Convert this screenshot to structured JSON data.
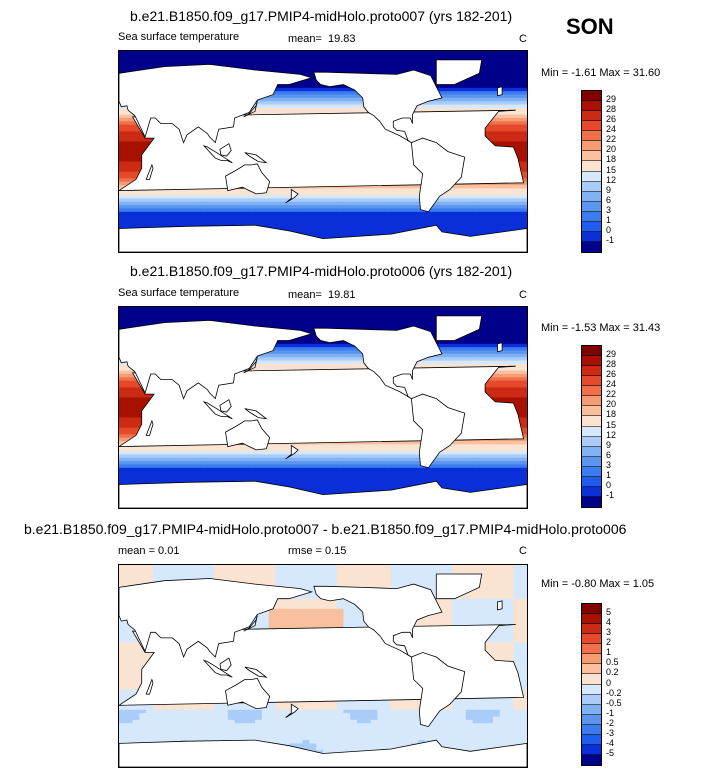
{
  "season": "SON",
  "panels": [
    {
      "title": "b.e21.B1850.f09_g17.PMIP4-midHolo.proto007 (yrs 182-201)",
      "left_label": "Sea surface temperature",
      "mean_label": "mean=",
      "mean_value": "19.83",
      "units": "C",
      "minmax": "Min = -1.61 Max = 31.60"
    },
    {
      "title": "b.e21.B1850.f09_g17.PMIP4-midHolo.proto006 (yrs 182-201)",
      "left_label": "Sea surface temperature",
      "mean_label": "mean=",
      "mean_value": "19.81",
      "units": "C",
      "minmax": "Min = -1.53 Max = 31.43"
    },
    {
      "title": "b.e21.B1850.f09_g17.PMIP4-midHolo.proto007 - b.e21.B1850.f09_g17.PMIP4-midHolo.proto006",
      "left_label": "mean =  0.01",
      "rmse_label": "rmse =  0.15",
      "units": "C",
      "minmax": "Min = -0.80 Max =  1.05"
    }
  ],
  "chart_data": [
    {
      "type": "heatmap",
      "title": "b.e21.B1850.f09_g17.PMIP4-midHolo.proto007 (yrs 182-201)",
      "variable": "Sea surface temperature",
      "units": "C",
      "mean": 19.83,
      "min": -1.61,
      "max": 31.6,
      "levels": [
        "-1",
        "0",
        "1",
        "3",
        "6",
        "9",
        "12",
        "15",
        "18",
        "20",
        "22",
        "24",
        "26",
        "28",
        "29"
      ],
      "colors": [
        "#00008b",
        "#0a2fd9",
        "#1f5cf0",
        "#3b7df0",
        "#5a96f0",
        "#7fb1f5",
        "#a9cdf8",
        "#d6e8fb",
        "#fbe3d2",
        "#f9c0a0",
        "#f59c73",
        "#f0704a",
        "#e64a2a",
        "#cc2a12",
        "#a81000",
        "#800000"
      ]
    },
    {
      "type": "heatmap",
      "title": "b.e21.B1850.f09_g17.PMIP4-midHolo.proto006 (yrs 182-201)",
      "variable": "Sea surface temperature",
      "units": "C",
      "mean": 19.81,
      "min": -1.53,
      "max": 31.43,
      "levels": [
        "-1",
        "0",
        "1",
        "3",
        "6",
        "9",
        "12",
        "15",
        "18",
        "20",
        "22",
        "24",
        "26",
        "28",
        "29"
      ],
      "colors": [
        "#00008b",
        "#0a2fd9",
        "#1f5cf0",
        "#3b7df0",
        "#5a96f0",
        "#7fb1f5",
        "#a9cdf8",
        "#d6e8fb",
        "#fbe3d2",
        "#f9c0a0",
        "#f59c73",
        "#f0704a",
        "#e64a2a",
        "#cc2a12",
        "#a81000",
        "#800000"
      ]
    },
    {
      "type": "heatmap",
      "title": "b.e21.B1850.f09_g17.PMIP4-midHolo.proto007 - b.e21.B1850.f09_g17.PMIP4-midHolo.proto006",
      "units": "C",
      "mean": 0.01,
      "rmse": 0.15,
      "min": -0.8,
      "max": 1.05,
      "levels": [
        "-5",
        "-4",
        "-3",
        "-2",
        "-1",
        "-0.5",
        "-0.2",
        "0",
        "0.2",
        "0.5",
        "1",
        "2",
        "3",
        "4",
        "5"
      ],
      "colors": [
        "#00008b",
        "#0a2fd9",
        "#1f5cf0",
        "#3b7df0",
        "#5a96f0",
        "#7fb1f5",
        "#a9cdf8",
        "#d6e8fb",
        "#fbe3d2",
        "#f9c0a0",
        "#f59c73",
        "#f0704a",
        "#e64a2a",
        "#cc2a12",
        "#a81000",
        "#800000"
      ]
    }
  ]
}
